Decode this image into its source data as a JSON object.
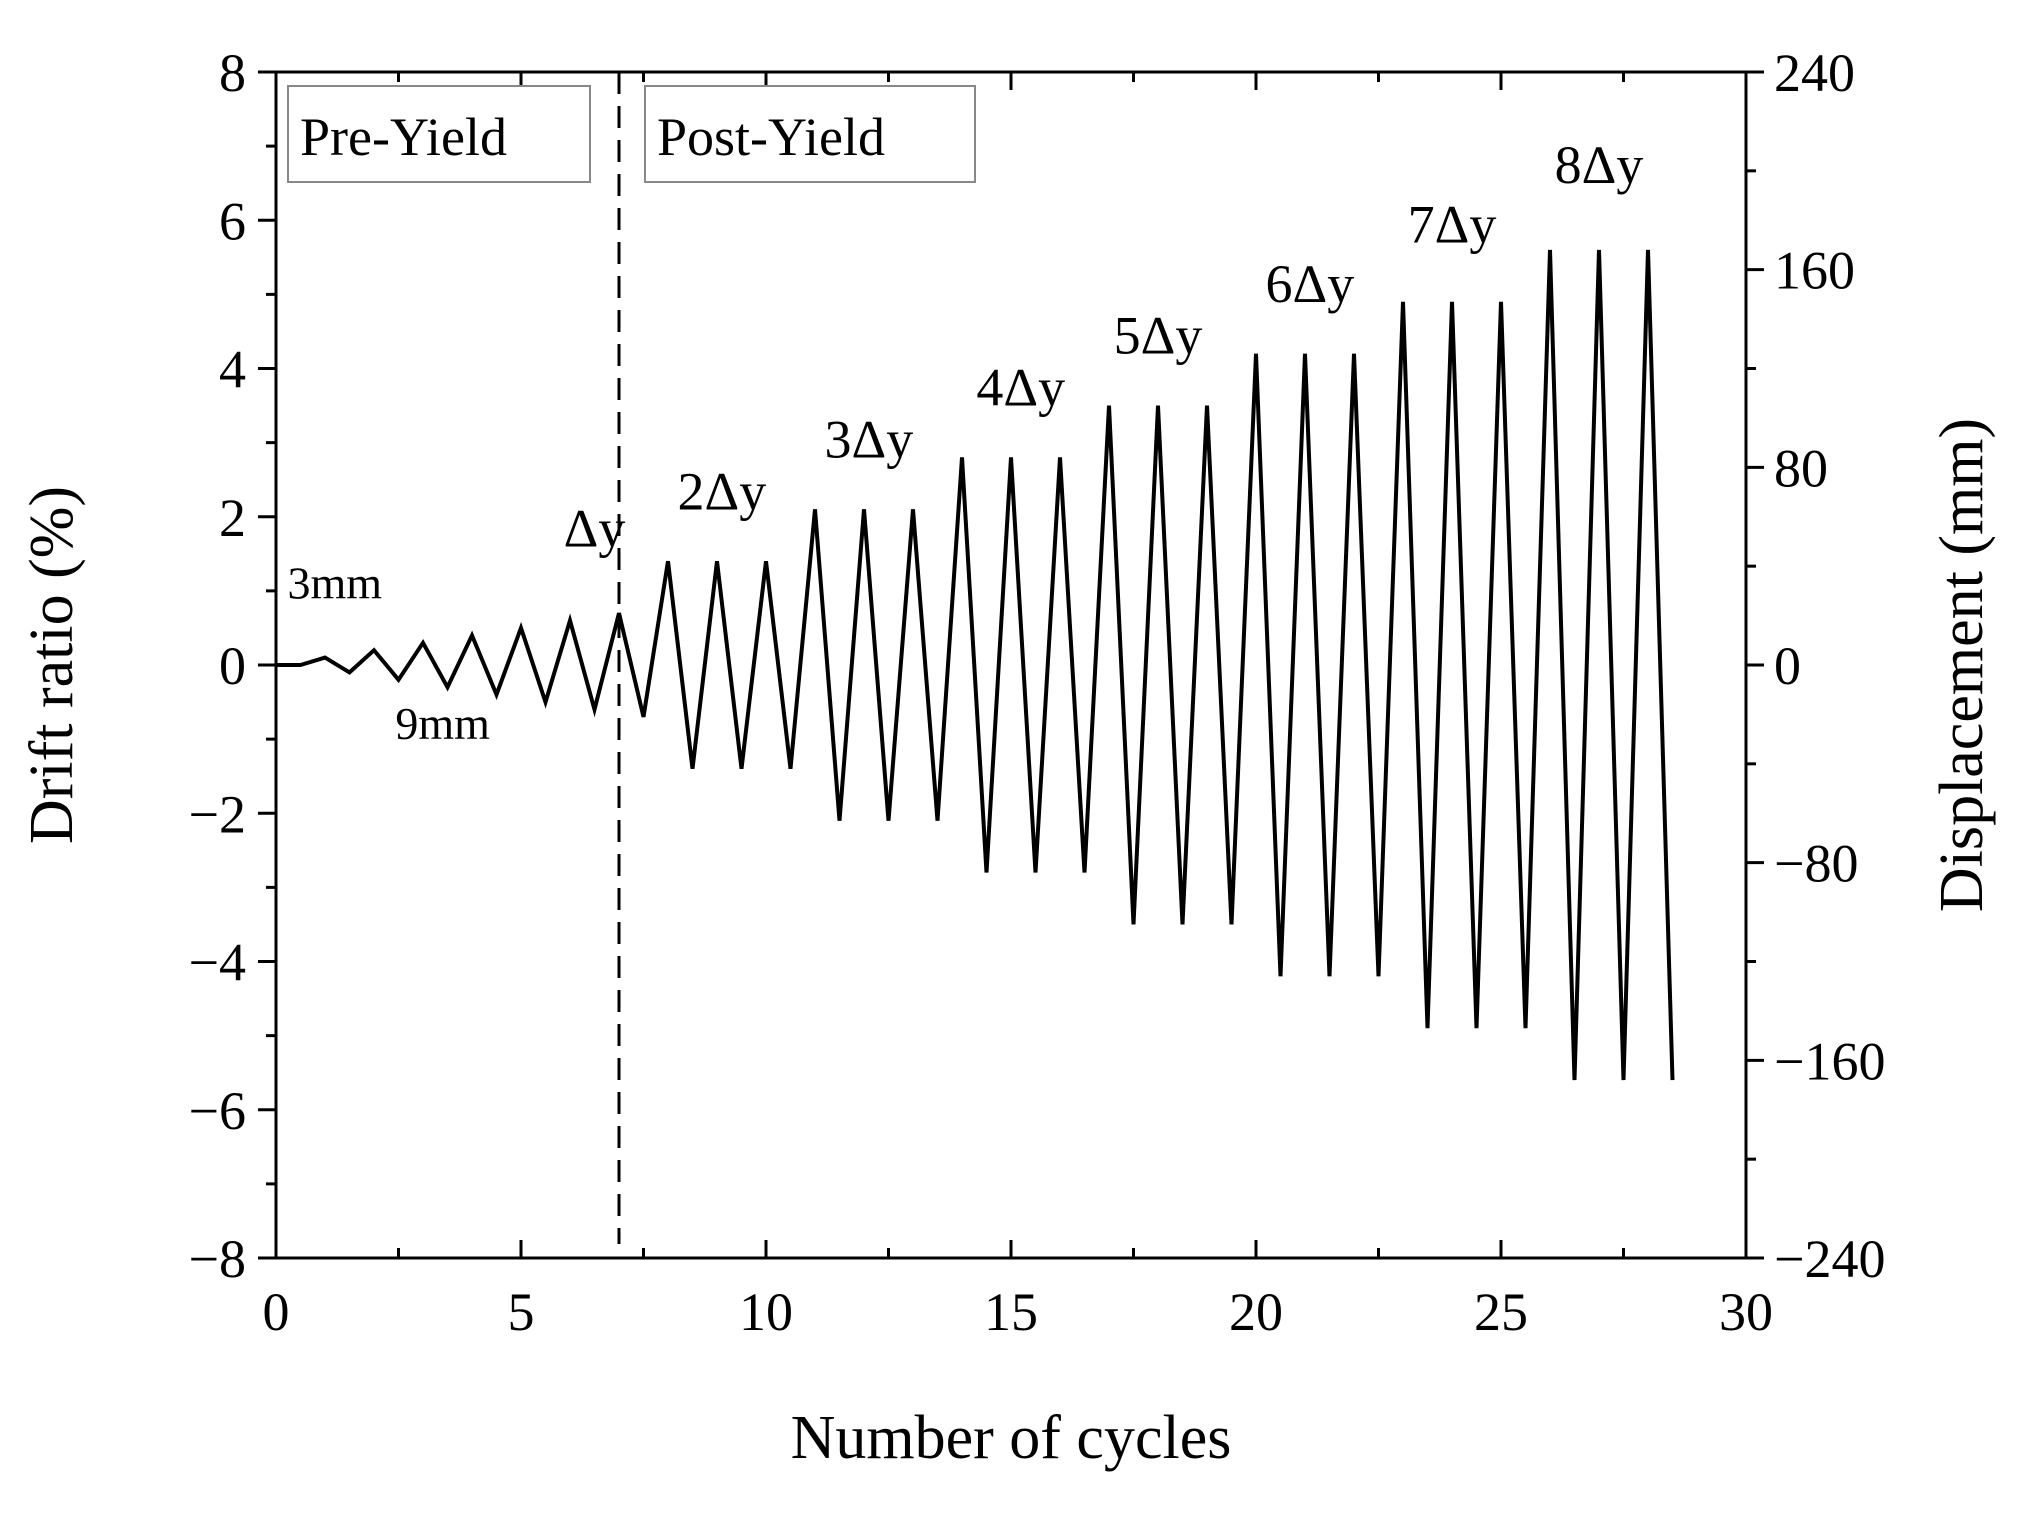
{
  "chart_data": {
    "type": "line",
    "title": "",
    "xlabel": "Number of cycles",
    "ylabel": "Drift ratio (%)",
    "y2label": "Displacement (mm)",
    "xlim": [
      0,
      30
    ],
    "ylim": [
      -8,
      8
    ],
    "y2lim": [
      -240,
      240
    ],
    "xticks": [
      0,
      5,
      10,
      15,
      20,
      25,
      30
    ],
    "yticks": [
      8,
      6,
      4,
      2,
      0,
      -2,
      -4,
      -6,
      -8
    ],
    "y2ticks": [
      240,
      160,
      80,
      0,
      -80,
      -160,
      -240
    ],
    "xtick_labels": [
      "0",
      "5",
      "10",
      "15",
      "20",
      "25",
      "30"
    ],
    "ytick_labels": [
      "8",
      "6",
      "4",
      "2",
      "0",
      "−2",
      "−4",
      "−6",
      "−8"
    ],
    "y2tick_labels": [
      "240",
      "160",
      "80",
      "0",
      "−80",
      "−160",
      "−240"
    ],
    "grid": false,
    "line_color": "#000000",
    "series": [
      {
        "name": "Loading protocol",
        "x": [
          0,
          0.5,
          1,
          1.5,
          2,
          2.5,
          3,
          3.5,
          4,
          4.5,
          5,
          5.5,
          6,
          6.5,
          7,
          7.5,
          8,
          8.5,
          9,
          9.5,
          10,
          10.5,
          11,
          11.5,
          12,
          12.5,
          13,
          13.5,
          14,
          14.5,
          15,
          15.5,
          16,
          16.5,
          17,
          17.5,
          18,
          18.5,
          19,
          19.5,
          20,
          20.5,
          21,
          21.5,
          22,
          22.5,
          23,
          23.5,
          24,
          24.5,
          25,
          25.5,
          26,
          26.5,
          27,
          27.5,
          28,
          28.5
        ],
        "y": [
          0,
          0,
          0.1,
          -0.1,
          0.2,
          -0.2,
          0.3,
          -0.3,
          0.4,
          -0.4,
          0.5,
          -0.5,
          0.6,
          -0.6,
          0.7,
          -0.7,
          1.4,
          -1.4,
          1.4,
          -1.4,
          1.4,
          -1.4,
          2.1,
          -2.1,
          2.1,
          -2.1,
          2.1,
          -2.1,
          2.8,
          -2.8,
          2.8,
          -2.8,
          2.8,
          -2.8,
          3.5,
          -3.5,
          3.5,
          -3.5,
          3.5,
          -3.5,
          4.2,
          -4.2,
          4.2,
          -4.2,
          4.2,
          -4.2,
          4.9,
          -4.9,
          4.9,
          -4.9,
          4.9,
          -4.9,
          5.6,
          -5.6,
          5.6,
          -5.6,
          5.6,
          -5.6
        ]
      }
    ],
    "yield_line_x": 7,
    "regions": {
      "pre": "Pre-Yield",
      "post": "Post-Yield"
    },
    "annotations": [
      {
        "id": "3mm",
        "text": "3mm",
        "x": 1.2,
        "y": 0.9
      },
      {
        "id": "9mm",
        "text": "9mm",
        "x": 3.4,
        "y": -1.0
      },
      {
        "id": "dy1",
        "text": "Δy",
        "x": 6.5,
        "y": 1.6
      },
      {
        "id": "dy2",
        "text": "2Δy",
        "x": 9.1,
        "y": 2.1
      },
      {
        "id": "dy3",
        "text": "3Δy",
        "x": 12.1,
        "y": 2.8
      },
      {
        "id": "dy4",
        "text": "4Δy",
        "x": 15.2,
        "y": 3.5
      },
      {
        "id": "dy5",
        "text": "5Δy",
        "x": 18.0,
        "y": 4.2
      },
      {
        "id": "dy6",
        "text": "6Δy",
        "x": 21.1,
        "y": 4.9
      },
      {
        "id": "dy7",
        "text": "7Δy",
        "x": 24.0,
        "y": 5.7
      },
      {
        "id": "dy8",
        "text": "8Δy",
        "x": 27.0,
        "y": 6.5
      }
    ]
  }
}
